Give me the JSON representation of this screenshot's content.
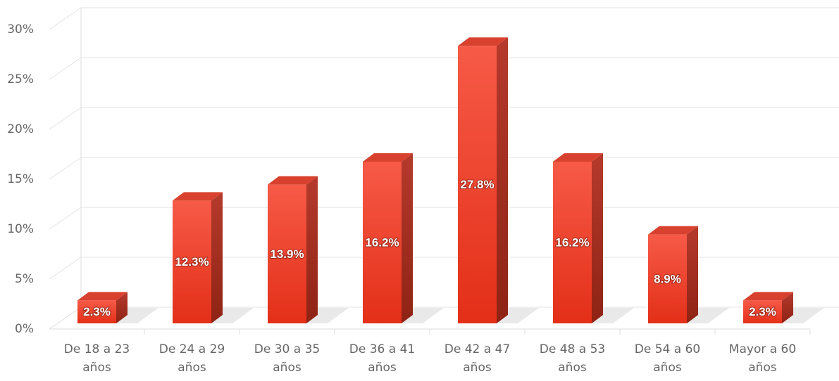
{
  "chart_data": {
    "type": "bar3d",
    "categories": [
      "De 18 a 23 años",
      "De 24 a 29 años",
      "De 30 a 35 años",
      "De 36 a 41 años",
      "De 42 a 47 años",
      "De 48 a 53 años",
      "De 54 a 60 años",
      "Mayor a 60 años"
    ],
    "values": [
      2.3,
      12.3,
      13.9,
      16.2,
      27.8,
      16.2,
      8.9,
      2.3
    ],
    "value_labels": [
      "2.3%",
      "12.3%",
      "13.9%",
      "16.2%",
      "27.8%",
      "16.2%",
      "8.9%",
      "2.3%"
    ],
    "color": "#ee3a22",
    "ylim": [
      0,
      30
    ],
    "yticks": [
      {
        "value": 0,
        "label": "0%"
      },
      {
        "value": 5,
        "label": "5%"
      },
      {
        "value": 10,
        "label": "10%"
      },
      {
        "value": 15,
        "label": "15%"
      },
      {
        "value": 20,
        "label": "20%"
      },
      {
        "value": 25,
        "label": "25%"
      },
      {
        "value": 30,
        "label": "30%"
      }
    ],
    "grid": true
  }
}
